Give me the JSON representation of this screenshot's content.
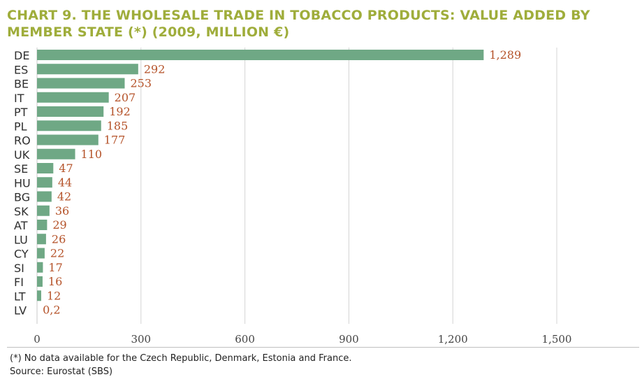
{
  "title": "CHART 9. THE WHOLESALE TRADE IN TOBACCO PRODUCTS: VALUE ADDED BY MEMBER STATE (*) (2009, MILLION €)",
  "footnote": "(*) No data available for the Czech Republic, Denmark, Estonia and France.",
  "source": "Source: Eurostat (SBS)",
  "colors": {
    "bar": "#6fa885",
    "value_label": "#b5532a",
    "title": "#9fad3b",
    "grid": "#d4d4d4"
  },
  "chart_data": {
    "type": "bar",
    "orientation": "horizontal",
    "categories": [
      "DE",
      "ES",
      "BE",
      "IT",
      "PT",
      "PL",
      "RO",
      "UK",
      "SE",
      "HU",
      "BG",
      "SK",
      "AT",
      "LU",
      "CY",
      "SI",
      "FI",
      "LT",
      "LV"
    ],
    "values": [
      1289,
      292,
      253,
      207,
      192,
      185,
      177,
      110,
      47,
      44,
      42,
      36,
      29,
      26,
      22,
      17,
      16,
      12,
      0.2
    ],
    "value_labels": [
      "1,289",
      "292",
      "253",
      "207",
      "192",
      "185",
      "177",
      "110",
      "47",
      "44",
      "42",
      "36",
      "29",
      "26",
      "22",
      "17",
      "16",
      "12",
      "0,2"
    ],
    "xlim": [
      0,
      1500
    ],
    "ticks": [
      0,
      300,
      600,
      900,
      1200,
      1500
    ],
    "tick_labels": [
      "0",
      "300",
      "600",
      "900",
      "1,200",
      "1,500"
    ],
    "grid": true
  }
}
